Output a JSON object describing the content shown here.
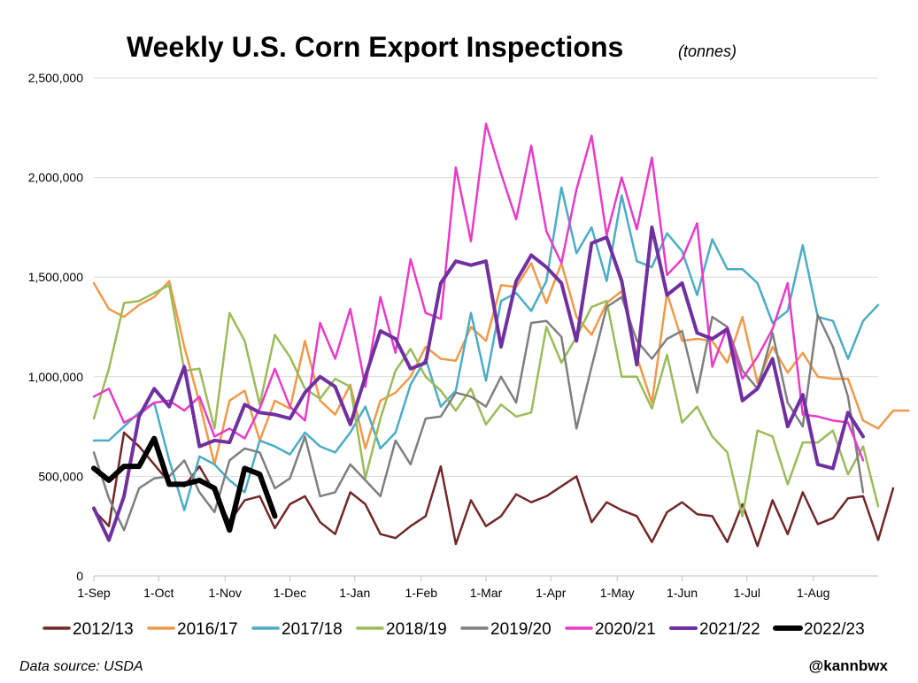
{
  "chart_data": {
    "type": "line",
    "title": "Weekly U.S. Corn Export Inspections",
    "subtitle": "(tonnes)",
    "xlabel": "",
    "ylabel": "",
    "ylim": [
      0,
      2500000
    ],
    "yticks": [
      0,
      500000,
      1000000,
      1500000,
      2000000,
      2500000
    ],
    "ytick_labels": [
      "0",
      "500,000",
      "1,000,000",
      "1,500,000",
      "2,000,000",
      "2,500,000"
    ],
    "xlim": [
      0,
      52
    ],
    "xticks": [
      0,
      4.3,
      8.7,
      13,
      17.3,
      21.7,
      26,
      30.3,
      34.7,
      39,
      43.3,
      47.7
    ],
    "xtick_labels": [
      "1-Sep",
      "1-Oct",
      "1-Nov",
      "1-Dec",
      "1-Jan",
      "1-Feb",
      "1-Mar",
      "1-Apr",
      "1-May",
      "1-Jun",
      "1-Jul",
      "1-Aug"
    ],
    "grid": "horizontal",
    "legend_position": "bottom",
    "source": "Data source: USDA",
    "credit": "@kannbwx",
    "series": [
      {
        "name": "2012/13",
        "color": "#722828",
        "width": 2.5,
        "values": [
          330000,
          250000,
          720000,
          650000,
          560000,
          470000,
          450000,
          550000,
          420000,
          270000,
          380000,
          400000,
          240000,
          360000,
          400000,
          270000,
          210000,
          420000,
          360000,
          210000,
          190000,
          250000,
          300000,
          550000,
          160000,
          380000,
          250000,
          300000,
          410000,
          370000,
          400000,
          450000,
          500000,
          270000,
          370000,
          330000,
          300000,
          170000,
          320000,
          370000,
          310000,
          300000,
          170000,
          360000,
          150000,
          380000,
          210000,
          420000,
          260000,
          290000,
          390000,
          400000,
          180000,
          440000
        ]
      },
      {
        "name": "2016/17",
        "color": "#F0994A",
        "width": 2.5,
        "values": [
          1470000,
          1340000,
          1300000,
          1360000,
          1400000,
          1480000,
          1150000,
          870000,
          560000,
          880000,
          930000,
          680000,
          880000,
          840000,
          1180000,
          880000,
          810000,
          960000,
          640000,
          880000,
          920000,
          1000000,
          1150000,
          1090000,
          1080000,
          1250000,
          1180000,
          1460000,
          1450000,
          1570000,
          1370000,
          1570000,
          1300000,
          1210000,
          1370000,
          1430000,
          1100000,
          870000,
          1420000,
          1180000,
          1190000,
          1180000,
          1070000,
          1300000,
          970000,
          1150000,
          1020000,
          1120000,
          1000000,
          990000,
          990000,
          780000,
          740000,
          830000,
          830000
        ]
      },
      {
        "name": "2017/18",
        "color": "#4BACC6",
        "width": 2.5,
        "values": [
          680000,
          680000,
          750000,
          820000,
          870000,
          580000,
          330000,
          600000,
          560000,
          480000,
          420000,
          680000,
          650000,
          610000,
          720000,
          650000,
          620000,
          720000,
          850000,
          640000,
          720000,
          960000,
          1090000,
          850000,
          930000,
          1320000,
          980000,
          1380000,
          1420000,
          1330000,
          1480000,
          1950000,
          1620000,
          1750000,
          1480000,
          1910000,
          1580000,
          1550000,
          1720000,
          1630000,
          1410000,
          1690000,
          1540000,
          1540000,
          1470000,
          1270000,
          1330000,
          1660000,
          1300000,
          1280000,
          1090000,
          1280000,
          1360000
        ]
      },
      {
        "name": "2018/19",
        "color": "#9BBB59",
        "width": 2.5,
        "values": [
          790000,
          1040000,
          1370000,
          1380000,
          1420000,
          1460000,
          1030000,
          1040000,
          740000,
          1320000,
          1180000,
          860000,
          1210000,
          1100000,
          940000,
          890000,
          990000,
          950000,
          490000,
          790000,
          1030000,
          1140000,
          1000000,
          930000,
          830000,
          940000,
          760000,
          860000,
          800000,
          820000,
          1250000,
          1070000,
          1200000,
          1350000,
          1380000,
          1000000,
          1000000,
          840000,
          1110000,
          770000,
          850000,
          700000,
          620000,
          300000,
          730000,
          700000,
          460000,
          670000,
          670000,
          730000,
          510000,
          650000,
          350000
        ]
      },
      {
        "name": "2019/20",
        "color": "#7F7F7F",
        "width": 2.5,
        "values": [
          620000,
          390000,
          230000,
          440000,
          490000,
          500000,
          580000,
          420000,
          320000,
          580000,
          640000,
          620000,
          440000,
          490000,
          700000,
          400000,
          420000,
          560000,
          480000,
          400000,
          680000,
          560000,
          790000,
          800000,
          920000,
          900000,
          850000,
          1000000,
          870000,
          1270000,
          1280000,
          1200000,
          740000,
          1050000,
          1350000,
          1400000,
          1180000,
          1090000,
          1190000,
          1230000,
          920000,
          1300000,
          1250000,
          1030000,
          940000,
          1220000,
          870000,
          750000,
          1310000,
          1150000,
          900000,
          420000
        ]
      },
      {
        "name": "2020/21",
        "color": "#E83BC8",
        "width": 2.5,
        "values": [
          900000,
          940000,
          770000,
          810000,
          870000,
          880000,
          830000,
          900000,
          700000,
          740000,
          690000,
          840000,
          1040000,
          850000,
          780000,
          1270000,
          1090000,
          1340000,
          950000,
          1400000,
          1120000,
          1590000,
          1320000,
          1290000,
          2050000,
          1680000,
          2270000,
          2020000,
          1790000,
          2160000,
          1730000,
          1570000,
          1940000,
          2210000,
          1710000,
          2000000,
          1740000,
          2100000,
          1510000,
          1590000,
          1770000,
          1050000,
          1250000,
          990000,
          1100000,
          1240000,
          1470000,
          810000,
          800000,
          780000,
          770000,
          580000
        ]
      },
      {
        "name": "2021/22",
        "color": "#7030A0",
        "width": 4,
        "values": [
          340000,
          180000,
          400000,
          800000,
          940000,
          850000,
          1050000,
          650000,
          680000,
          670000,
          860000,
          820000,
          810000,
          790000,
          920000,
          1000000,
          950000,
          760000,
          1000000,
          1230000,
          1190000,
          1040000,
          1070000,
          1470000,
          1580000,
          1560000,
          1580000,
          1150000,
          1480000,
          1610000,
          1550000,
          1470000,
          1180000,
          1670000,
          1700000,
          1480000,
          1060000,
          1750000,
          1410000,
          1470000,
          1220000,
          1190000,
          1240000,
          880000,
          940000,
          1090000,
          750000,
          910000,
          560000,
          540000,
          820000,
          700000
        ]
      },
      {
        "name": "2022/23",
        "color": "#000000",
        "width": 6,
        "values": [
          540000,
          480000,
          550000,
          550000,
          690000,
          460000,
          460000,
          480000,
          440000,
          230000,
          540000,
          510000,
          300000
        ]
      }
    ]
  }
}
